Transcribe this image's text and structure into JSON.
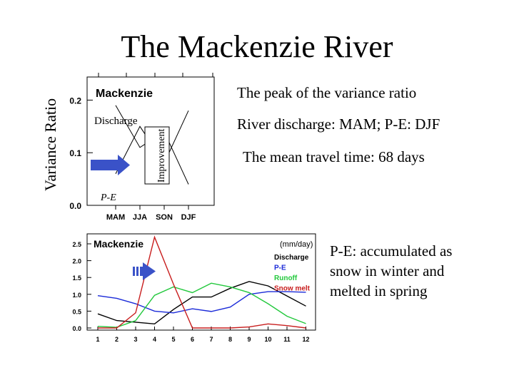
{
  "title": "The Mackenzie River",
  "side_label": "Variance Ratio",
  "notes": {
    "peak": "The peak of the variance ratio",
    "discharge": "River discharge: MAM; P-E: DJF",
    "travel": "The mean travel time: 68 days",
    "pe_line1": "P-E: accumulated as",
    "pe_line2": "snow in winter and",
    "pe_line3": "melted in spring"
  },
  "colors": {
    "arrow": "#3a52c8",
    "discharge": "#000000",
    "pe": "#1a2ad8",
    "runoff": "#22c83c",
    "snowmelt": "#c81e1e"
  },
  "chart_data": [
    {
      "type": "line",
      "title": "Mackenzie",
      "categories": [
        "MAM",
        "JJA",
        "SON",
        "DJF"
      ],
      "ylim": [
        0,
        0.2
      ],
      "yticks": [
        "0.0",
        "0.1",
        "0.2"
      ],
      "series": [
        {
          "name": "Discharge",
          "values": [
            0.19,
            0.11,
            0.14,
            0.04
          ]
        },
        {
          "name": "P-E",
          "values": [
            0.06,
            0.15,
            0.08,
            0.18
          ]
        }
      ],
      "annotations": {
        "improvement": "Improvement"
      }
    },
    {
      "type": "line",
      "title": "Mackenzie",
      "unit": "(mm/day)",
      "x": [
        1,
        2,
        3,
        4,
        5,
        6,
        7,
        8,
        9,
        10,
        11,
        12
      ],
      "xticks": [
        "1",
        "2",
        "3",
        "4",
        "5",
        "6",
        "7",
        "8",
        "9",
        "10",
        "11",
        "12"
      ],
      "yticks": [
        "0.0",
        "0.5",
        "1.0",
        "1.5",
        "2.0",
        "2.5"
      ],
      "ylim": [
        0,
        2.5
      ],
      "series": [
        {
          "name": "Discharge",
          "values": [
            0.42,
            0.22,
            0.17,
            0.12,
            0.55,
            0.92,
            0.92,
            1.18,
            1.38,
            1.25,
            0.95,
            0.65
          ]
        },
        {
          "name": "P-E",
          "values": [
            0.96,
            0.88,
            0.72,
            0.5,
            0.45,
            0.57,
            0.49,
            0.62,
            1.0,
            1.08,
            1.08,
            1.06
          ]
        },
        {
          "name": "Runoff",
          "values": [
            0.05,
            0.02,
            0.22,
            0.97,
            1.22,
            1.05,
            1.33,
            1.22,
            1.05,
            0.72,
            0.35,
            0.13
          ]
        },
        {
          "name": "Snow melt",
          "values": [
            0.0,
            0.0,
            0.45,
            2.7,
            1.3,
            0.0,
            0.0,
            0.0,
            0.03,
            0.12,
            0.07,
            0.0
          ]
        }
      ]
    }
  ]
}
